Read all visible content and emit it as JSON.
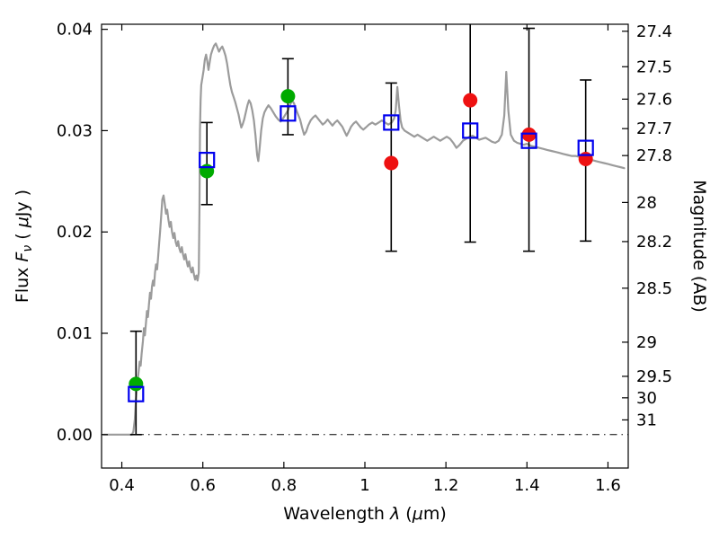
{
  "chart_data": {
    "type": "line",
    "title": "",
    "xlabel": "Wavelength λ (μm)",
    "xlabel_parts": [
      {
        "t": "Wavelength  "
      },
      {
        "t": "λ",
        "italic": true
      },
      {
        "t": "  ("
      },
      {
        "t": "μ",
        "italic": true
      },
      {
        "t": "m)"
      }
    ],
    "ylabel": "Flux Fν ( μJy )",
    "ylabel_parts": [
      {
        "t": "Flux  "
      },
      {
        "t": "F",
        "italic": true
      },
      {
        "t": "ν",
        "italic": true,
        "sub": true
      },
      {
        "t": "  ( "
      },
      {
        "t": "μ",
        "italic": true
      },
      {
        "t": "Jy )"
      }
    ],
    "ylabel_right": "Magnitude (AB)",
    "ylabel_right_parts": [
      {
        "t": "Magnitude (AB)"
      }
    ],
    "xlim": [
      0.35,
      1.65
    ],
    "ylim": [
      -0.0033,
      0.0405
    ],
    "grid": false,
    "legend": null,
    "zero_line_flux": 0.0,
    "xticks": [
      {
        "v": 0.4,
        "label": "0.4"
      },
      {
        "v": 0.6,
        "label": "0.6"
      },
      {
        "v": 0.8,
        "label": "0.8"
      },
      {
        "v": 1.0,
        "label": "1"
      },
      {
        "v": 1.2,
        "label": "1.2"
      },
      {
        "v": 1.4,
        "label": "1.4"
      },
      {
        "v": 1.6,
        "label": "1.6"
      }
    ],
    "yticks_left": [
      {
        "v": 0.0,
        "label": "0.00"
      },
      {
        "v": 0.01,
        "label": "0.01"
      },
      {
        "v": 0.02,
        "label": "0.02"
      },
      {
        "v": 0.03,
        "label": "0.03"
      },
      {
        "v": 0.04,
        "label": "0.04"
      }
    ],
    "yticks_right_magnitude": [
      {
        "label": "27.4",
        "flux": 0.03981
      },
      {
        "label": "27.5",
        "flux": 0.03631
      },
      {
        "label": "27.6",
        "flux": 0.03311
      },
      {
        "label": "27.7",
        "flux": 0.0302
      },
      {
        "label": "27.8",
        "flux": 0.02754
      },
      {
        "label": "28",
        "flux": 0.02291
      },
      {
        "label": "28.2",
        "flux": 0.01905
      },
      {
        "label": "28.5",
        "flux": 0.01445
      },
      {
        "label": "29",
        "flux": 0.00912
      },
      {
        "label": "29.5",
        "flux": 0.00575
      },
      {
        "label": "30",
        "flux": 0.00363
      },
      {
        "label": "31",
        "flux": 0.00145
      }
    ],
    "error_bars": [
      {
        "x": 0.435,
        "lo": 0.0,
        "hi": 0.0102
      },
      {
        "x": 0.61,
        "lo": 0.0227,
        "hi": 0.0308
      },
      {
        "x": 0.81,
        "lo": 0.0296,
        "hi": 0.0371
      },
      {
        "x": 1.065,
        "lo": 0.0181,
        "hi": 0.0347
      },
      {
        "x": 1.26,
        "lo": 0.019,
        "hi": 0.046
      },
      {
        "x": 1.405,
        "lo": 0.0181,
        "hi": 0.0401
      },
      {
        "x": 1.545,
        "lo": 0.0191,
        "hi": 0.035
      }
    ],
    "series": [
      {
        "name": "model-spectrum",
        "type": "line",
        "marker": "none",
        "color": "#9b9b9b",
        "points": [
          [
            0.355,
            0.0
          ],
          [
            0.425,
            0.0
          ],
          [
            0.4285,
            0.0003
          ],
          [
            0.432,
            0.0015
          ],
          [
            0.435,
            0.0035
          ],
          [
            0.438,
            0.005
          ],
          [
            0.441,
            0.006
          ],
          [
            0.444,
            0.0072
          ],
          [
            0.4465,
            0.0068
          ],
          [
            0.449,
            0.008
          ],
          [
            0.452,
            0.0092
          ],
          [
            0.4545,
            0.0105
          ],
          [
            0.457,
            0.0098
          ],
          [
            0.4595,
            0.011
          ],
          [
            0.462,
            0.0122
          ],
          [
            0.4645,
            0.0116
          ],
          [
            0.467,
            0.0128
          ],
          [
            0.4695,
            0.014
          ],
          [
            0.472,
            0.0134
          ],
          [
            0.4745,
            0.0146
          ],
          [
            0.477,
            0.0152
          ],
          [
            0.4795,
            0.0147
          ],
          [
            0.482,
            0.016
          ],
          [
            0.4845,
            0.0168
          ],
          [
            0.487,
            0.0163
          ],
          [
            0.4895,
            0.0175
          ],
          [
            0.492,
            0.0188
          ],
          [
            0.4945,
            0.02
          ],
          [
            0.497,
            0.0215
          ],
          [
            0.5,
            0.0232
          ],
          [
            0.503,
            0.0236
          ],
          [
            0.506,
            0.0228
          ],
          [
            0.509,
            0.0218
          ],
          [
            0.512,
            0.0222
          ],
          [
            0.515,
            0.0212
          ],
          [
            0.518,
            0.0205
          ],
          [
            0.521,
            0.021
          ],
          [
            0.524,
            0.02
          ],
          [
            0.527,
            0.0194
          ],
          [
            0.53,
            0.0199
          ],
          [
            0.533,
            0.019
          ],
          [
            0.536,
            0.0186
          ],
          [
            0.539,
            0.0191
          ],
          [
            0.542,
            0.0184
          ],
          [
            0.545,
            0.018
          ],
          [
            0.548,
            0.0185
          ],
          [
            0.551,
            0.0178
          ],
          [
            0.554,
            0.0173
          ],
          [
            0.557,
            0.0178
          ],
          [
            0.56,
            0.0171
          ],
          [
            0.563,
            0.0166
          ],
          [
            0.566,
            0.0171
          ],
          [
            0.569,
            0.0164
          ],
          [
            0.572,
            0.016
          ],
          [
            0.575,
            0.0165
          ],
          [
            0.578,
            0.0158
          ],
          [
            0.581,
            0.0153
          ],
          [
            0.584,
            0.0157
          ],
          [
            0.587,
            0.0152
          ],
          [
            0.59,
            0.016
          ],
          [
            0.5915,
            0.022
          ],
          [
            0.593,
            0.03
          ],
          [
            0.5945,
            0.033
          ],
          [
            0.596,
            0.0345
          ],
          [
            0.599,
            0.0352
          ],
          [
            0.602,
            0.036
          ],
          [
            0.605,
            0.037
          ],
          [
            0.608,
            0.0375
          ],
          [
            0.611,
            0.0368
          ],
          [
            0.614,
            0.036
          ],
          [
            0.617,
            0.0368
          ],
          [
            0.62,
            0.0375
          ],
          [
            0.624,
            0.038
          ],
          [
            0.628,
            0.0384
          ],
          [
            0.632,
            0.0386
          ],
          [
            0.636,
            0.0382
          ],
          [
            0.64,
            0.0378
          ],
          [
            0.644,
            0.0381
          ],
          [
            0.648,
            0.0383
          ],
          [
            0.652,
            0.0379
          ],
          [
            0.656,
            0.0374
          ],
          [
            0.66,
            0.0366
          ],
          [
            0.664,
            0.0355
          ],
          [
            0.668,
            0.0345
          ],
          [
            0.672,
            0.0338
          ],
          [
            0.676,
            0.0333
          ],
          [
            0.68,
            0.0328
          ],
          [
            0.684,
            0.0322
          ],
          [
            0.688,
            0.0316
          ],
          [
            0.692,
            0.0308
          ],
          [
            0.695,
            0.0303
          ],
          [
            0.698,
            0.0306
          ],
          [
            0.702,
            0.0311
          ],
          [
            0.706,
            0.0318
          ],
          [
            0.71,
            0.0325
          ],
          [
            0.714,
            0.033
          ],
          [
            0.718,
            0.0327
          ],
          [
            0.722,
            0.032
          ],
          [
            0.726,
            0.031
          ],
          [
            0.73,
            0.0295
          ],
          [
            0.734,
            0.0276
          ],
          [
            0.737,
            0.027
          ],
          [
            0.74,
            0.0282
          ],
          [
            0.744,
            0.03
          ],
          [
            0.748,
            0.0312
          ],
          [
            0.752,
            0.0318
          ],
          [
            0.757,
            0.0322
          ],
          [
            0.762,
            0.0325
          ],
          [
            0.768,
            0.0322
          ],
          [
            0.774,
            0.0318
          ],
          [
            0.78,
            0.0314
          ],
          [
            0.786,
            0.0311
          ],
          [
            0.792,
            0.0309
          ],
          [
            0.798,
            0.0312
          ],
          [
            0.804,
            0.0316
          ],
          [
            0.81,
            0.032
          ],
          [
            0.815,
            0.0325
          ],
          [
            0.82,
            0.033
          ],
          [
            0.825,
            0.0327
          ],
          [
            0.83,
            0.0321
          ],
          [
            0.835,
            0.0316
          ],
          [
            0.84,
            0.0311
          ],
          [
            0.845,
            0.0303
          ],
          [
            0.85,
            0.0296
          ],
          [
            0.855,
            0.0299
          ],
          [
            0.86,
            0.0305
          ],
          [
            0.866,
            0.031
          ],
          [
            0.872,
            0.0313
          ],
          [
            0.878,
            0.0315
          ],
          [
            0.884,
            0.0312
          ],
          [
            0.89,
            0.0309
          ],
          [
            0.896,
            0.0306
          ],
          [
            0.902,
            0.0308
          ],
          [
            0.908,
            0.0311
          ],
          [
            0.914,
            0.0308
          ],
          [
            0.92,
            0.0305
          ],
          [
            0.926,
            0.0308
          ],
          [
            0.932,
            0.031
          ],
          [
            0.938,
            0.0307
          ],
          [
            0.944,
            0.0304
          ],
          [
            0.95,
            0.0299
          ],
          [
            0.955,
            0.0295
          ],
          [
            0.96,
            0.0299
          ],
          [
            0.966,
            0.0304
          ],
          [
            0.972,
            0.0307
          ],
          [
            0.978,
            0.0309
          ],
          [
            0.984,
            0.0306
          ],
          [
            0.99,
            0.0303
          ],
          [
            0.996,
            0.0301
          ],
          [
            1.002,
            0.0303
          ],
          [
            1.01,
            0.0306
          ],
          [
            1.018,
            0.0308
          ],
          [
            1.026,
            0.0306
          ],
          [
            1.034,
            0.0308
          ],
          [
            1.042,
            0.031
          ],
          [
            1.05,
            0.0308
          ],
          [
            1.058,
            0.0306
          ],
          [
            1.066,
            0.0308
          ],
          [
            1.072,
            0.0312
          ],
          [
            1.076,
            0.032
          ],
          [
            1.08,
            0.0343
          ],
          [
            1.084,
            0.0325
          ],
          [
            1.088,
            0.031
          ],
          [
            1.092,
            0.0303
          ],
          [
            1.098,
            0.03
          ],
          [
            1.106,
            0.0298
          ],
          [
            1.114,
            0.0296
          ],
          [
            1.122,
            0.0294
          ],
          [
            1.13,
            0.0296
          ],
          [
            1.138,
            0.0294
          ],
          [
            1.146,
            0.0292
          ],
          [
            1.154,
            0.029
          ],
          [
            1.162,
            0.0292
          ],
          [
            1.17,
            0.0294
          ],
          [
            1.178,
            0.0292
          ],
          [
            1.186,
            0.029
          ],
          [
            1.194,
            0.0292
          ],
          [
            1.202,
            0.0294
          ],
          [
            1.21,
            0.0292
          ],
          [
            1.218,
            0.0288
          ],
          [
            1.226,
            0.0283
          ],
          [
            1.234,
            0.0286
          ],
          [
            1.242,
            0.029
          ],
          [
            1.25,
            0.0292
          ],
          [
            1.258,
            0.0294
          ],
          [
            1.266,
            0.0295
          ],
          [
            1.274,
            0.0293
          ],
          [
            1.282,
            0.0291
          ],
          [
            1.29,
            0.0292
          ],
          [
            1.298,
            0.0293
          ],
          [
            1.306,
            0.0291
          ],
          [
            1.314,
            0.0289
          ],
          [
            1.322,
            0.0288
          ],
          [
            1.33,
            0.029
          ],
          [
            1.338,
            0.0296
          ],
          [
            1.344,
            0.0315
          ],
          [
            1.349,
            0.0358
          ],
          [
            1.354,
            0.032
          ],
          [
            1.36,
            0.0296
          ],
          [
            1.368,
            0.029
          ],
          [
            1.376,
            0.0288
          ],
          [
            1.384,
            0.0287
          ],
          [
            1.392,
            0.0286
          ],
          [
            1.4,
            0.0287
          ],
          [
            1.41,
            0.0285
          ],
          [
            1.42,
            0.0284
          ],
          [
            1.43,
            0.0283
          ],
          [
            1.44,
            0.0282
          ],
          [
            1.45,
            0.0281
          ],
          [
            1.46,
            0.028
          ],
          [
            1.47,
            0.0279
          ],
          [
            1.48,
            0.0278
          ],
          [
            1.49,
            0.0277
          ],
          [
            1.5,
            0.0276
          ],
          [
            1.51,
            0.0275
          ],
          [
            1.52,
            0.0275
          ],
          [
            1.53,
            0.0274
          ],
          [
            1.54,
            0.0273
          ],
          [
            1.55,
            0.0272
          ],
          [
            1.56,
            0.0271
          ],
          [
            1.57,
            0.027
          ],
          [
            1.58,
            0.0269
          ],
          [
            1.59,
            0.0268
          ],
          [
            1.6,
            0.0267
          ],
          [
            1.61,
            0.0266
          ],
          [
            1.62,
            0.0265
          ],
          [
            1.63,
            0.0264
          ],
          [
            1.64,
            0.0263
          ]
        ]
      },
      {
        "name": "photometry-green-circles",
        "type": "scatter",
        "marker": "filled-circle",
        "color": "#00aa00",
        "points": [
          {
            "x": 0.435,
            "y": 0.005
          },
          {
            "x": 0.61,
            "y": 0.026
          },
          {
            "x": 0.81,
            "y": 0.0334
          }
        ]
      },
      {
        "name": "photometry-red-circles",
        "type": "scatter",
        "marker": "filled-circle",
        "color": "#ee1111",
        "points": [
          {
            "x": 1.065,
            "y": 0.0268
          },
          {
            "x": 1.26,
            "y": 0.033
          },
          {
            "x": 1.405,
            "y": 0.0296
          },
          {
            "x": 1.545,
            "y": 0.0272
          }
        ]
      },
      {
        "name": "photometry-blue-open-squares",
        "type": "scatter",
        "marker": "open-square",
        "color": "#0000ee",
        "points": [
          {
            "x": 0.435,
            "y": 0.004
          },
          {
            "x": 0.61,
            "y": 0.0271
          },
          {
            "x": 0.81,
            "y": 0.0317
          },
          {
            "x": 1.065,
            "y": 0.0308
          },
          {
            "x": 1.26,
            "y": 0.03
          },
          {
            "x": 1.405,
            "y": 0.029
          },
          {
            "x": 1.545,
            "y": 0.0283
          }
        ]
      }
    ],
    "colors": {
      "spectrum": "#9b9b9b",
      "blue_square": "#0000ee",
      "green_circle": "#00aa00",
      "red_circle": "#ee1111",
      "error_bar": "#000000",
      "frame": "#000000",
      "background": "#ffffff"
    }
  }
}
